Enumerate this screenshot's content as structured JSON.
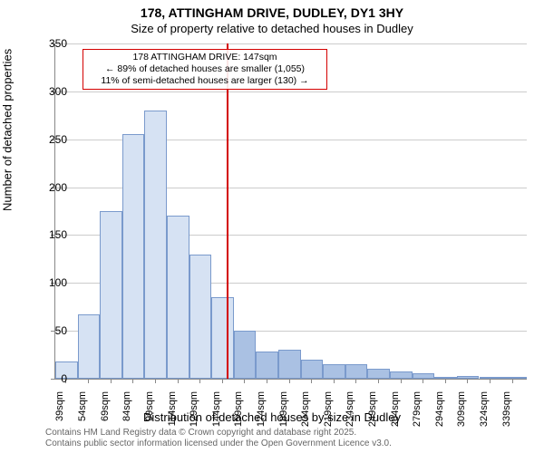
{
  "title_main": "178, ATTINGHAM DRIVE, DUDLEY, DY1 3HY",
  "title_sub": "Size of property relative to detached houses in Dudley",
  "y_axis_label": "Number of detached properties",
  "x_axis_label": "Distribution of detached houses by size in Dudley",
  "footer_line1": "Contains HM Land Registry data © Crown copyright and database right 2025.",
  "footer_line2": "Contains public sector information licensed under the Open Government Licence v3.0.",
  "annotation": {
    "line1": "178 ATTINGHAM DRIVE: 147sqm",
    "line2": "← 89% of detached houses are smaller (1,055)",
    "line3": "11% of semi-detached houses are larger (130) →"
  },
  "chart": {
    "type": "histogram",
    "ylim": [
      0,
      350
    ],
    "ytick_step": 50,
    "xlim_sqm": [
      32,
      349
    ],
    "xtick_start": 39,
    "xtick_step": 15,
    "xtick_suffix": "sqm",
    "marker_value_sqm": 147,
    "marker_color": "#d40000",
    "bar_border_color": "#7a9acc",
    "bar_fill_light": "#d6e2f3",
    "bar_fill_dark": "#aac1e3",
    "grid_color": "#cccccc",
    "background_color": "#ffffff",
    "bins": [
      {
        "start": 32,
        "end": 47,
        "count": 18
      },
      {
        "start": 47,
        "end": 62,
        "count": 67
      },
      {
        "start": 62,
        "end": 77,
        "count": 175
      },
      {
        "start": 77,
        "end": 92,
        "count": 255
      },
      {
        "start": 92,
        "end": 107,
        "count": 280
      },
      {
        "start": 107,
        "end": 122,
        "count": 170
      },
      {
        "start": 122,
        "end": 137,
        "count": 130
      },
      {
        "start": 137,
        "end": 152,
        "count": 85
      },
      {
        "start": 152,
        "end": 167,
        "count": 50
      },
      {
        "start": 167,
        "end": 182,
        "count": 28
      },
      {
        "start": 182,
        "end": 197,
        "count": 30
      },
      {
        "start": 197,
        "end": 212,
        "count": 20
      },
      {
        "start": 212,
        "end": 227,
        "count": 15
      },
      {
        "start": 227,
        "end": 242,
        "count": 15
      },
      {
        "start": 242,
        "end": 257,
        "count": 10
      },
      {
        "start": 257,
        "end": 272,
        "count": 8
      },
      {
        "start": 272,
        "end": 287,
        "count": 6
      },
      {
        "start": 287,
        "end": 302,
        "count": 2
      },
      {
        "start": 302,
        "end": 317,
        "count": 3
      },
      {
        "start": 317,
        "end": 332,
        "count": 2
      },
      {
        "start": 332,
        "end": 349,
        "count": 2
      }
    ]
  }
}
